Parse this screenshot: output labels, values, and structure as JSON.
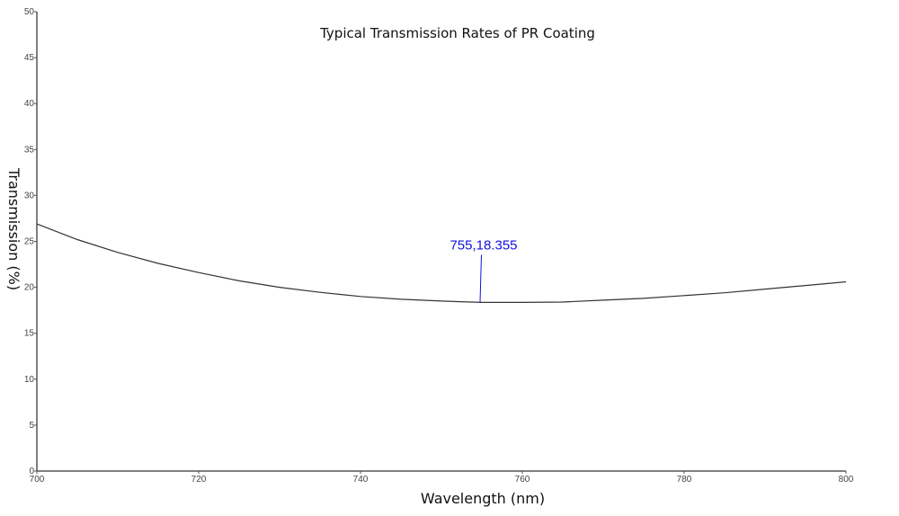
{
  "chart_data": {
    "type": "line",
    "title": "Typical Transmission Rates of PR Coating",
    "xlabel": "Wavelength (nm)",
    "ylabel": "Transmission (%)",
    "xlim": [
      700,
      800
    ],
    "ylim": [
      0,
      50
    ],
    "xticks": [
      700,
      720,
      740,
      760,
      780,
      800
    ],
    "yticks": [
      0,
      5,
      10,
      15,
      20,
      25,
      30,
      35,
      40,
      45,
      50
    ],
    "grid": false,
    "series": [
      {
        "name": "PR Coating",
        "color": "#333333",
        "x": [
          700,
          705,
          710,
          715,
          720,
          725,
          730,
          735,
          740,
          745,
          750,
          755,
          760,
          765,
          770,
          775,
          780,
          785,
          790,
          795,
          800
        ],
        "y": [
          26.9,
          25.2,
          23.8,
          22.6,
          21.6,
          20.7,
          20.0,
          19.45,
          19.0,
          18.7,
          18.5,
          18.355,
          18.36,
          18.4,
          18.6,
          18.8,
          19.1,
          19.4,
          19.8,
          20.2,
          20.6
        ]
      }
    ],
    "annotation": {
      "x": 755,
      "y": 18.355,
      "label": "755,18.355",
      "color": "#1010e0"
    }
  }
}
